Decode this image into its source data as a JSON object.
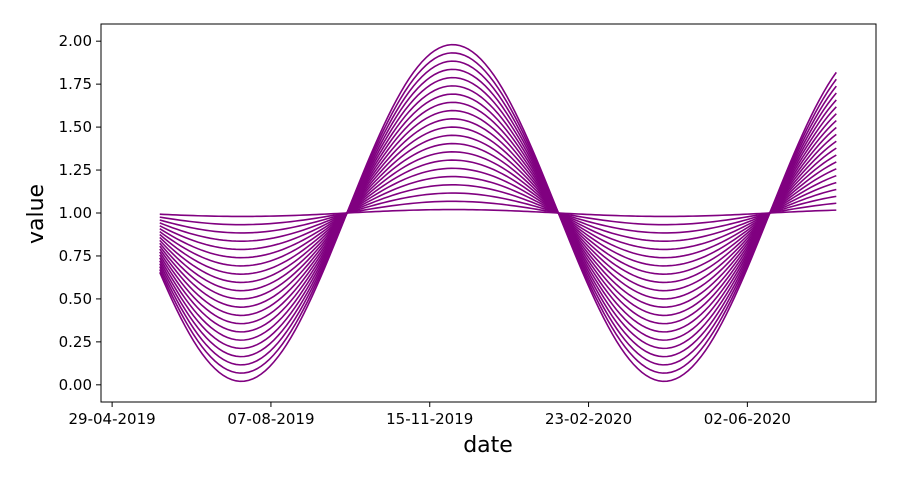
{
  "chart_data": {
    "type": "line",
    "title": "",
    "xlabel": "date",
    "ylabel": "value",
    "x_axis_type": "date",
    "x_range": [
      "2019-05-29",
      "2020-07-28"
    ],
    "xlim": [
      "2019-04-22",
      "2020-08-22"
    ],
    "ylim": [
      -0.1,
      2.1
    ],
    "x_ticks": [
      "29-04-2019",
      "07-08-2019",
      "15-11-2019",
      "23-02-2020",
      "02-06-2020"
    ],
    "y_ticks": [
      "0.00",
      "0.25",
      "0.50",
      "0.75",
      "1.00",
      "1.25",
      "1.50",
      "1.75",
      "2.00"
    ],
    "series_function": "1 + a * sin(2*pi*(date - 2019-05-29)/365 * 1.2 - pi/2 ... ) family of curves",
    "amplitudes": [
      0.02,
      0.068,
      0.116,
      0.164,
      0.212,
      0.26,
      0.308,
      0.356,
      0.404,
      0.452,
      0.5,
      0.548,
      0.596,
      0.644,
      0.692,
      0.74,
      0.788,
      0.836,
      0.884,
      0.932,
      0.98
    ],
    "series_color": "#800080",
    "grid": false,
    "legend": "none"
  }
}
